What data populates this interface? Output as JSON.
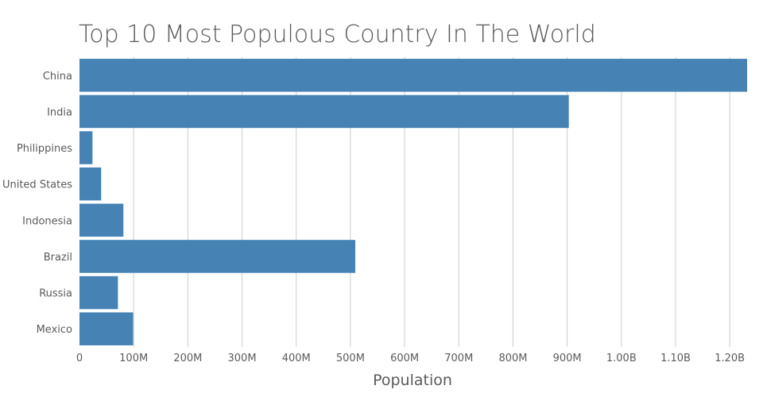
{
  "chart_data": {
    "type": "bar",
    "orientation": "horizontal",
    "title": "Top 10 Most Populous Country In The World",
    "xlabel": "Population",
    "ylabel": "",
    "categories": [
      "China",
      "India",
      "Philippines",
      "United States",
      "Indonesia",
      "Brazil",
      "Russia",
      "Mexico"
    ],
    "values": [
      1232000000,
      903000000,
      24000000,
      40000000,
      81000000,
      509000000,
      71000000,
      99000000
    ],
    "xlim": [
      0,
      1232000000
    ],
    "xticks": [
      0,
      100000000,
      200000000,
      300000000,
      400000000,
      500000000,
      600000000,
      700000000,
      800000000,
      900000000,
      1000000000,
      1100000000,
      1200000000
    ],
    "xtick_labels": [
      "0",
      "100M",
      "200M",
      "300M",
      "400M",
      "500M",
      "600M",
      "700M",
      "800M",
      "900M",
      "1.00B",
      "1.10B",
      "1.20B"
    ],
    "grid": true,
    "legend": "none",
    "colors": {
      "bar": "#4682b4",
      "grid": "#cccccc",
      "tick_text": "#5a5a5a",
      "title_text": "#5a5a5a",
      "axis_label_text": "#5a5a5a"
    }
  }
}
